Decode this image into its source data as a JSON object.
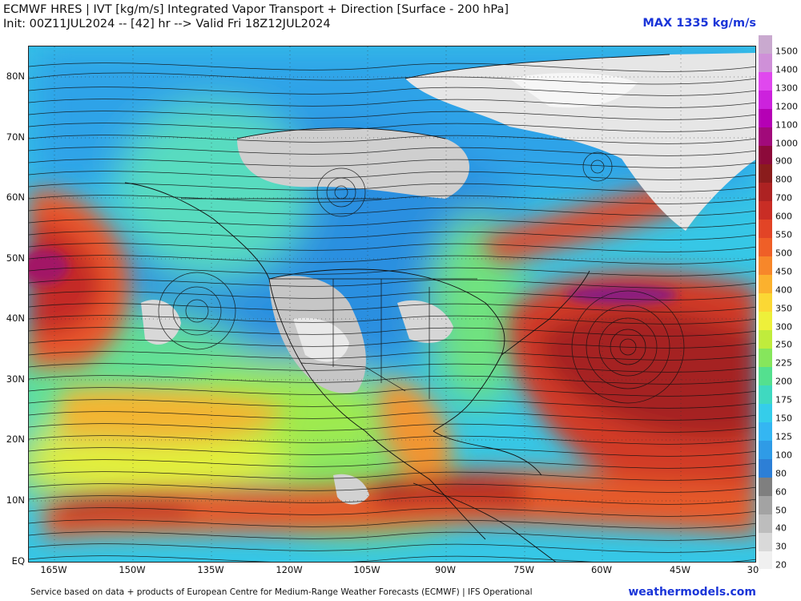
{
  "header": {
    "title_line1": "ECMWF HRES | IVT [kg/m/s] Integrated Vapor Transport + Direction [Surface - 200 hPa]",
    "title_line2": "Init: 00Z11JUL2024 -- [42] hr --> Valid Fri 18Z12JUL2024",
    "max_label": "MAX 1335 kg/m/s"
  },
  "axes": {
    "lat_labels": [
      "80N",
      "70N",
      "60N",
      "50N",
      "40N",
      "30N",
      "20N",
      "10N",
      "EQ"
    ],
    "lon_labels": [
      "165W",
      "150W",
      "135W",
      "120W",
      "105W",
      "90W",
      "75W",
      "60W",
      "45W",
      "30"
    ]
  },
  "colorbar": {
    "labels": [
      "1500",
      "1400",
      "1300",
      "1200",
      "1100",
      "1000",
      "900",
      "800",
      "700",
      "600",
      "550",
      "500",
      "450",
      "400",
      "350",
      "300",
      "250",
      "225",
      "200",
      "175",
      "150",
      "125",
      "100",
      "80",
      "60",
      "50",
      "40",
      "30",
      "20"
    ],
    "colors": [
      "#f0f0f0",
      "#d9d9d9",
      "#bdbdbd",
      "#a3a3a3",
      "#7f7f7f",
      "#2d7fd6",
      "#2f9be6",
      "#34b6f2",
      "#35cdea",
      "#3fd9c0",
      "#54e08f",
      "#86e65c",
      "#c0ec3c",
      "#eef03a",
      "#fbd834",
      "#fbb12e",
      "#f7872a",
      "#ef5f27",
      "#e24426",
      "#c92d25",
      "#ad2222",
      "#8a1c1c",
      "#8c0a3a",
      "#a10a7a",
      "#b500b5",
      "#cc22dd",
      "#e048ee",
      "#cf90d8",
      "#c9a9cf"
    ]
  },
  "footer": {
    "credit": "Service based on data + products of European Centre for Medium-Range Weather Forecasts (ECMWF) | IFS Operational",
    "site": "weathermodels.com"
  }
}
